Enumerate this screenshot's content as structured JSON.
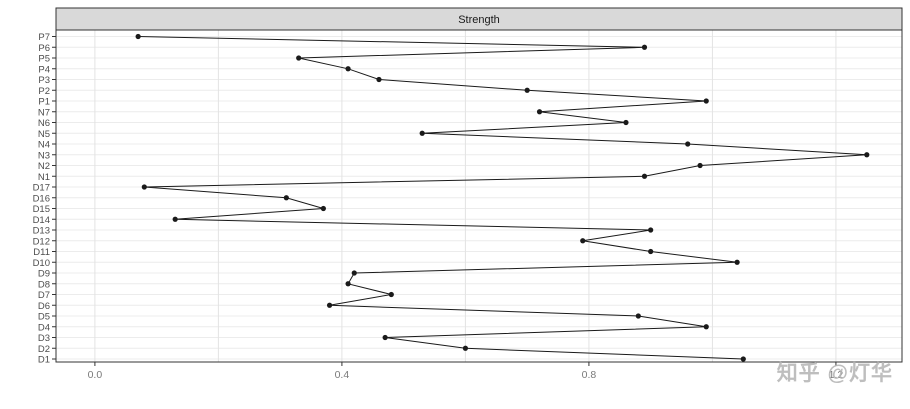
{
  "chart_data": {
    "type": "line",
    "title": "Strength",
    "orientation": "horizontal_category_axis",
    "categories": [
      "P7",
      "P6",
      "P5",
      "P4",
      "P3",
      "P2",
      "P1",
      "N7",
      "N6",
      "N5",
      "N4",
      "N3",
      "N2",
      "N1",
      "D17",
      "D16",
      "D15",
      "D14",
      "D13",
      "D12",
      "D11",
      "D10",
      "D9",
      "D8",
      "D7",
      "D6",
      "D5",
      "D4",
      "D3",
      "D2",
      "D1"
    ],
    "values": [
      0.07,
      0.89,
      0.33,
      0.41,
      0.46,
      0.7,
      0.99,
      0.72,
      0.86,
      0.53,
      0.96,
      1.25,
      0.98,
      0.89,
      0.08,
      0.31,
      0.37,
      0.13,
      0.9,
      0.79,
      0.9,
      1.04,
      0.42,
      0.41,
      0.48,
      0.38,
      0.88,
      0.99,
      0.47,
      0.6,
      1.05
    ],
    "xlim": [
      -0.063,
      1.307
    ],
    "x_ticks": [
      0.0,
      0.4,
      0.8,
      1.2
    ],
    "x_tick_labels": [
      "0.0",
      "0.4",
      "0.8",
      "1.2"
    ],
    "x_minor_ticks": [
      0.2,
      0.6,
      1.0
    ],
    "grid": true,
    "legend": "none",
    "colors": {
      "line": "#1a1a1a",
      "point": "#1a1a1a",
      "strip_fill": "#d9d9d9",
      "panel_border": "#333333",
      "grid_major": "#e3e3e3",
      "grid_row": "#ececec",
      "panel_bg": "#ffffff"
    }
  },
  "watermark": {
    "text": "知乎 @灯华"
  }
}
